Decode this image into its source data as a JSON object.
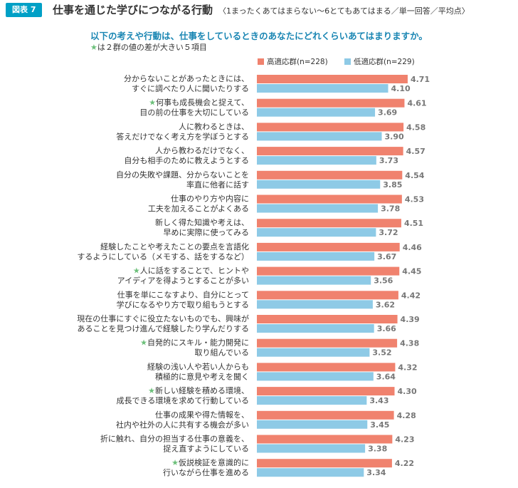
{
  "header": {
    "figure_badge": "図表 7",
    "title": "仕事を通じた学びにつながる行動",
    "subtitle": "〈1まったくあてはまらない〜6とてもあてはまる／単一回答／平均点〉"
  },
  "question": "以下の考えや行動は、仕事をしているときのあなたにどれくらいあてはまりますか。",
  "note": {
    "star": "★",
    "text": "は２群の値の差が大きい５項目"
  },
  "colors": {
    "high": "#f0826e",
    "low": "#8ecae6",
    "star": "#6cc07a",
    "accent": "#00a0c6"
  },
  "chart_data": {
    "type": "bar",
    "orientation": "horizontal",
    "series": [
      {
        "name": "高適応群(n=228)",
        "values": [
          4.71,
          4.61,
          4.58,
          4.57,
          4.54,
          4.53,
          4.51,
          4.46,
          4.45,
          4.42,
          4.39,
          4.38,
          4.32,
          4.3,
          4.28,
          4.23,
          4.22
        ]
      },
      {
        "name": "低適応群(n=229)",
        "values": [
          4.1,
          3.69,
          3.9,
          3.73,
          3.85,
          3.78,
          3.72,
          3.67,
          3.56,
          3.62,
          3.66,
          3.52,
          3.64,
          3.43,
          3.45,
          3.38,
          3.34
        ]
      }
    ],
    "categories": [
      {
        "lines": [
          "分からないことがあったときには、",
          "すぐに調べたり人に聞いたりする"
        ],
        "star": false
      },
      {
        "lines": [
          "何事も成長機会と捉えて、",
          "目の前の仕事を大切にしている"
        ],
        "star": true
      },
      {
        "lines": [
          "人に教わるときは、",
          "答えだけでなく考え方を学ぼうとする"
        ],
        "star": false
      },
      {
        "lines": [
          "人から教わるだけでなく、",
          "自分も相手のために教えようとする"
        ],
        "star": false
      },
      {
        "lines": [
          "自分の失敗や課題、分からないことを",
          "率直に他者に話す"
        ],
        "star": false
      },
      {
        "lines": [
          "仕事のやり方や内容に",
          "工夫を加えることがよくある"
        ],
        "star": false
      },
      {
        "lines": [
          "新しく得た知識や考えは、",
          "早めに実際に使ってみる"
        ],
        "star": false
      },
      {
        "lines": [
          "経験したことや考えたことの要点を言語化",
          "するようにしている（メモする、話をするなど）"
        ],
        "star": false
      },
      {
        "lines": [
          "人に話をすることで、ヒントや",
          "アイディアを得ようとすることが多い"
        ],
        "star": true
      },
      {
        "lines": [
          "仕事を単にこなすより、自分にとって",
          "学びになるやり方で取り組もうとする"
        ],
        "star": false
      },
      {
        "lines": [
          "現在の仕事にすぐに役立たないものでも、興味が",
          "あることを見つけ進んで経験したり学んだりする"
        ],
        "star": false
      },
      {
        "lines": [
          "自発的にスキル・能力開発に",
          "取り組んでいる"
        ],
        "star": true
      },
      {
        "lines": [
          "経験の浅い人や若い人からも",
          "積極的に意見や考えを聞く"
        ],
        "star": false
      },
      {
        "lines": [
          "新しい経験を積める環境、",
          "成長できる環境を求めて行動している"
        ],
        "star": true
      },
      {
        "lines": [
          "仕事の成果や得た情報を、",
          "社内や社外の人に共有する機会が多い"
        ],
        "star": false
      },
      {
        "lines": [
          "折に触れ、自分の担当する仕事の意義を、",
          "捉え直すようにしている"
        ],
        "star": false
      },
      {
        "lines": [
          "仮説検証を意識的に",
          "行いながら仕事を進める"
        ],
        "star": true
      }
    ]
  }
}
